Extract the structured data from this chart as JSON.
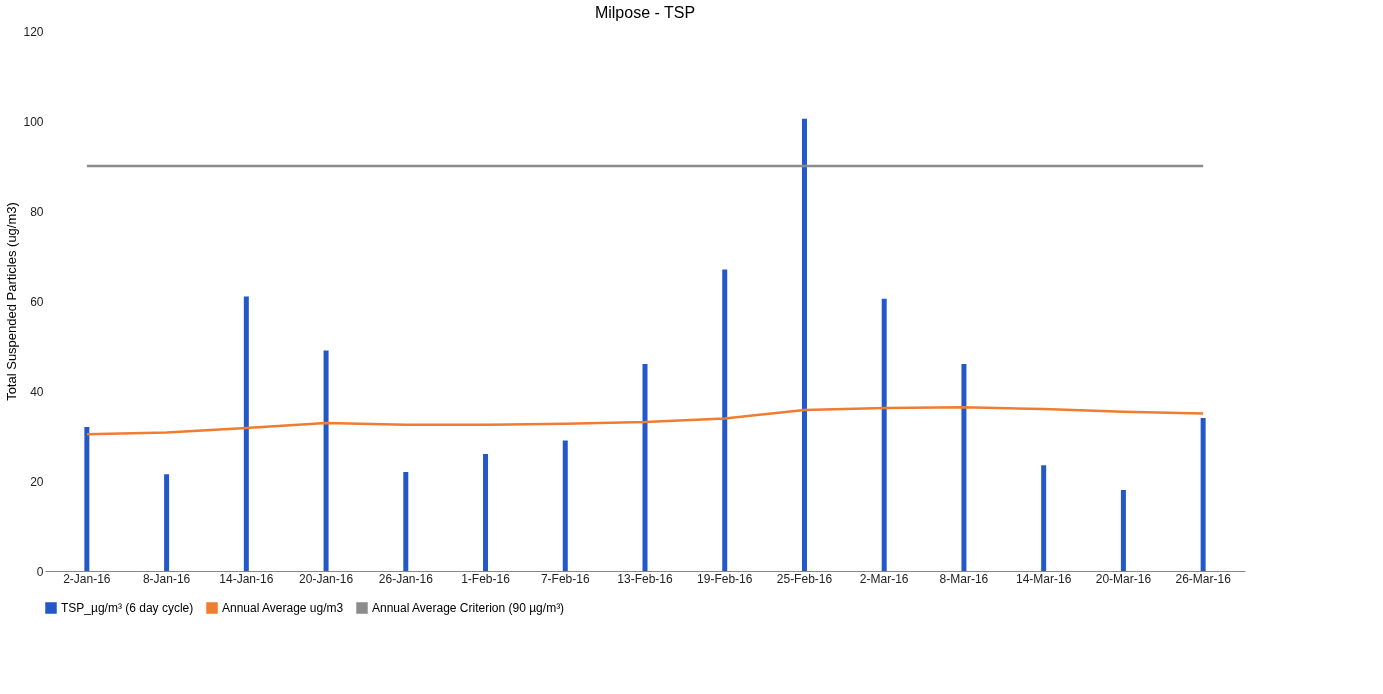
{
  "chart_data": {
    "type": "bar",
    "title": "Milpose - TSP",
    "ylabel": "Total Suspended Particles (ug/m3)",
    "categories": [
      "2-Jan-16",
      "8-Jan-16",
      "14-Jan-16",
      "20-Jan-16",
      "26-Jan-16",
      "1-Feb-16",
      "7-Feb-16",
      "13-Feb-16",
      "19-Feb-16",
      "25-Feb-16",
      "2-Mar-16",
      "8-Mar-16",
      "14-Mar-16",
      "20-Mar-16",
      "26-Mar-16"
    ],
    "series": [
      {
        "name": "TSP_µg/m³ (6 day cycle)",
        "color": "#2458c6",
        "values": [
          32,
          21.5,
          61,
          49,
          22,
          26,
          29,
          46,
          67,
          100.5,
          60.5,
          46,
          23.5,
          18,
          34
        ]
      },
      {
        "name": "Annual Average ug/m3",
        "type": "line",
        "color": "#f07c30",
        "values": [
          30.4,
          30.8,
          31.8,
          32.9,
          32.5,
          32.5,
          32.7,
          33.1,
          33.9,
          35.8,
          36.2,
          36.4,
          36,
          35.4,
          35
        ]
      },
      {
        "name": "Annual Average Criterion (90 µg/m³)",
        "type": "line",
        "color": "#8c8c8c",
        "values": [
          90,
          90,
          90,
          90,
          90,
          90,
          90,
          90,
          90,
          90,
          90,
          90,
          90,
          90,
          90
        ]
      }
    ],
    "ylim": [
      0,
      120
    ],
    "yticks": [
      0,
      20,
      40,
      60,
      80,
      100,
      120
    ],
    "grid": false,
    "legend": "bottom",
    "marker": "none",
    "line_style": "solid"
  }
}
